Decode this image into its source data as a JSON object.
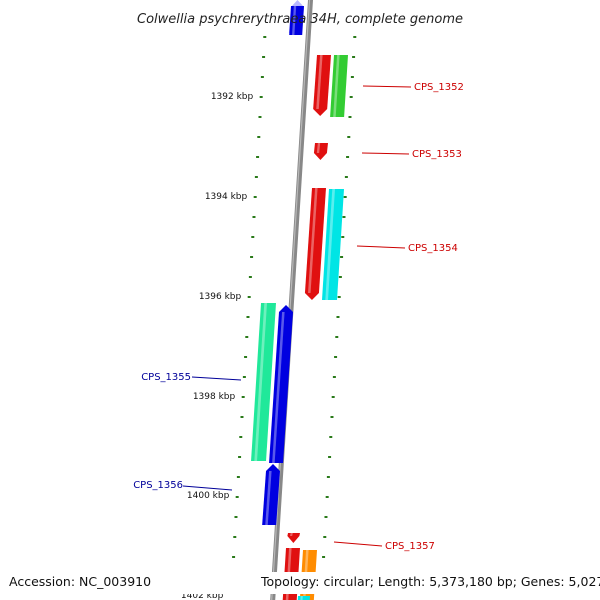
{
  "title": "Colwellia psychrerythraea 34H, complete genome",
  "accession": "Accession: NC_003910",
  "summary": "Topology: circular; Length: 5,373,180 bp; Genes: 5,027",
  "scale_labels": [
    "1392 kbp",
    "1394 kbp",
    "1396 kbp",
    "1398 kbp",
    "1400 kbp",
    "1402 kbp"
  ],
  "gene_labels": [
    "CPS_1352",
    "CPS_1353",
    "CPS_1354",
    "CPS_1355",
    "CPS_1356",
    "CPS_1357"
  ],
  "colors": {
    "forward_label": "#cc0000",
    "reverse_label": "#000099",
    "backbone": "#888888",
    "ticks": "#2a7a1a",
    "red": "#e01010",
    "green": "#33cc33",
    "cyan": "#00e5e5",
    "mint": "#20e89a",
    "blue": "#0000e0",
    "orange": "#ff8c00",
    "lavender": "#b8b8ff"
  }
}
